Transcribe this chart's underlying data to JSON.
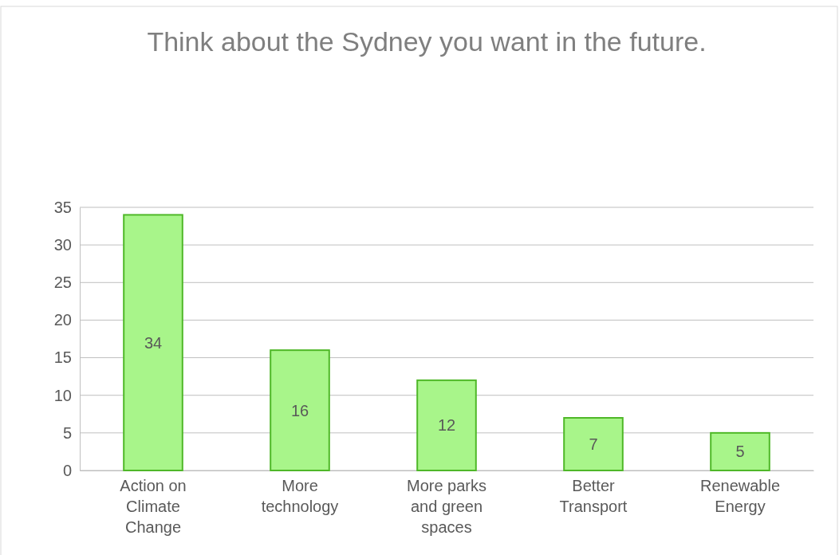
{
  "chart_data": {
    "type": "bar",
    "title": "Think about the Sydney you want in the future.",
    "categories": [
      "Action on Climate Change",
      "More technology",
      "More parks and green spaces",
      "Better Transport",
      "Renewable Energy"
    ],
    "values": [
      34,
      16,
      12,
      7,
      5
    ],
    "color": "#a8f58a",
    "ylim": [
      0,
      35
    ],
    "yticks": [
      0,
      5,
      10,
      15,
      20,
      25,
      30,
      35
    ],
    "grid": true,
    "data_labels": true
  }
}
